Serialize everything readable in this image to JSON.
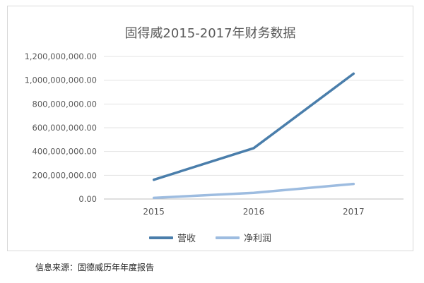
{
  "source_note": "信息来源：固德威历年年度报告",
  "colors": {
    "营收": "#4a7eab",
    "净利润": "#9dbce0",
    "gridline": "#e3e3e3",
    "axis_text": "#595959"
  },
  "chart_data": {
    "type": "line",
    "title": "固得威2015-2017年财务数据",
    "xlabel": "",
    "ylabel": "",
    "categories": [
      "2015",
      "2016",
      "2017"
    ],
    "ylim": [
      0,
      1200000000
    ],
    "yticks": [
      0,
      200000000,
      400000000,
      600000000,
      800000000,
      1000000000,
      1200000000
    ],
    "ytick_labels": [
      "0.00",
      "200,000,000.00",
      "400,000,000.00",
      "600,000,000.00",
      "800,000,000.00",
      "1,000,000,000.00",
      "1,200,000,000.00"
    ],
    "grid": true,
    "legend_position": "bottom",
    "series": [
      {
        "name": "营收",
        "values": [
          162000000,
          428000000,
          1055000000
        ]
      },
      {
        "name": "净利润",
        "values": [
          10000000,
          52000000,
          127000000
        ]
      }
    ]
  }
}
